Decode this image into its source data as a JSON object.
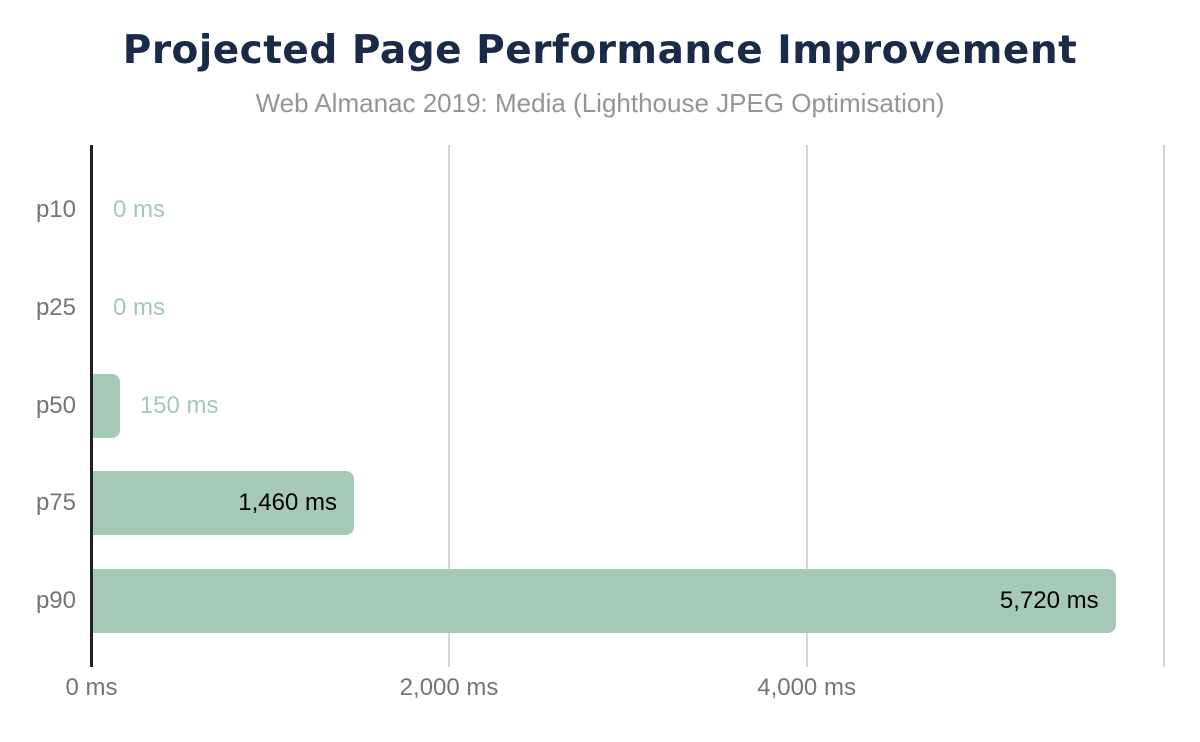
{
  "page": {
    "background": "#ffffff"
  },
  "chart_data": {
    "type": "bar",
    "orientation": "horizontal",
    "title": "Projected Page Performance Improvement",
    "subtitle": "Web Almanac 2019: Media (Lighthouse JPEG Optimisation)",
    "categories": [
      "p10",
      "p25",
      "p50",
      "p75",
      "p90"
    ],
    "values": [
      0,
      0,
      150,
      1460,
      5720
    ],
    "value_labels": [
      "0 ms",
      "0 ms",
      "150 ms",
      "1,460 ms",
      "5,720 ms"
    ],
    "unit": "ms",
    "xlim": [
      0,
      6030
    ],
    "x_ticks": [
      {
        "value": 0,
        "label": "0 ms"
      },
      {
        "value": 2000,
        "label": "2,000 ms"
      },
      {
        "value": 4000,
        "label": "4,000 ms"
      }
    ],
    "gridlines": [
      2000,
      4000,
      6000
    ],
    "legend": "none",
    "grid": "vertical-only",
    "colors": {
      "bar": "#a5c8b7",
      "annotation_outside": "#a5c8b7",
      "annotation_inside": "#000000",
      "title": "#1a2b49",
      "subtitle": "#959595",
      "axis_label": "#757575",
      "gridline": "#d4d4d4",
      "axis_line": "#212121"
    }
  }
}
